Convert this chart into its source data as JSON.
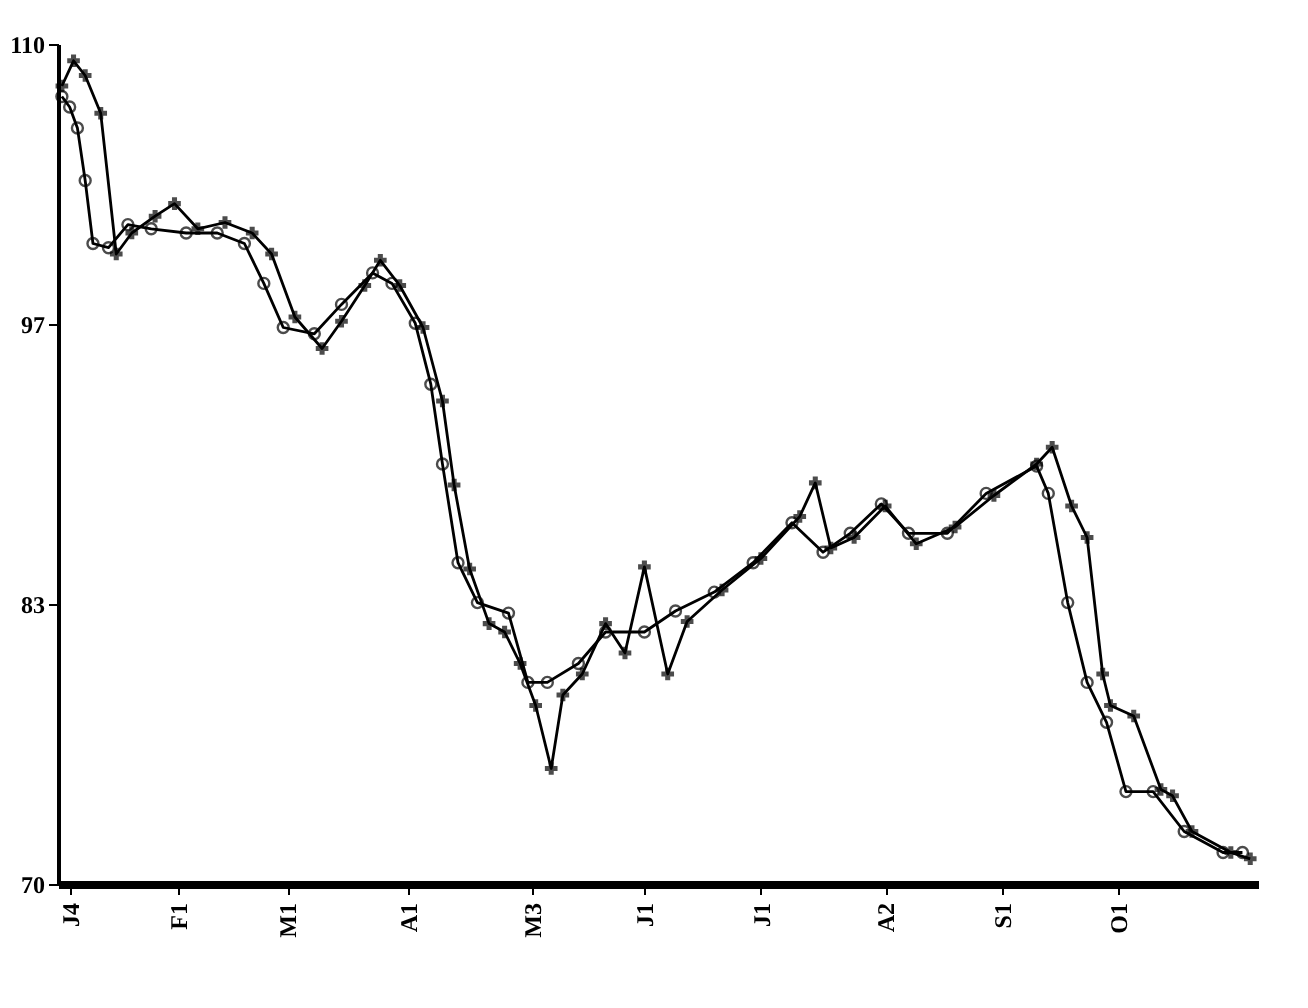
{
  "chart_data": {
    "type": "line",
    "xlim": [
      "--01-01",
      "--11-06"
    ],
    "xticks": [
      {
        "value": "--01-04",
        "label": "J4"
      },
      {
        "value": "--02-01",
        "label": "F1"
      },
      {
        "value": "--03-01",
        "label": "M1"
      },
      {
        "value": "--04-01",
        "label": "A1"
      },
      {
        "value": "--05-03",
        "label": "M3"
      },
      {
        "value": "--06-01",
        "label": "J1"
      },
      {
        "value": "--07-01",
        "label": "J1"
      },
      {
        "value": "--08-02",
        "label": "A2"
      },
      {
        "value": "--09-01",
        "label": "S1"
      },
      {
        "value": "--10-01",
        "label": "O1"
      }
    ],
    "ylim": [
      70,
      110
    ],
    "yticks": [
      70,
      {
        "value": 83.33,
        "label": "83"
      },
      {
        "value": 96.67,
        "label": "97"
      },
      110
    ],
    "grid": false,
    "line_style": "solid",
    "series": [
      {
        "color": "#000000",
        "marker": "circle",
        "x": [
          "--01-02",
          "--01-04",
          "--01-06",
          "--01-08",
          "--01-10",
          "--01-14",
          "--01-19",
          "--01-25",
          "--02-03",
          "--02-11",
          "--02-18",
          "--02-23",
          "--02-28",
          "--03-08",
          "--03-15",
          "--03-23",
          "--03-28",
          "--04-03",
          "--04-07",
          "--04-10",
          "--04-14",
          "--04-19",
          "--04-27",
          "--05-02",
          "--05-07",
          "--05-15",
          "--05-22",
          "--06-01",
          "--06-09",
          "--06-19",
          "--06-29",
          "--07-09",
          "--07-17",
          "--07-24",
          "--08-01",
          "--08-08",
          "--08-18",
          "--08-28",
          "--09-10",
          "--09-13",
          "--09-18",
          "--09-23",
          "--09-28",
          "--10-03",
          "--10-10",
          "--10-18",
          "--10-28",
          "--11-02"
        ],
        "values": [
          107.5,
          107.0,
          106.0,
          103.5,
          100.5,
          100.3,
          101.4,
          101.2,
          101.0,
          101.0,
          100.5,
          98.6,
          96.5,
          96.2,
          97.6,
          99.1,
          98.6,
          96.7,
          93.8,
          90.0,
          85.3,
          83.4,
          82.9,
          79.6,
          79.6,
          80.5,
          82.0,
          82.0,
          83.0,
          83.9,
          85.3,
          87.2,
          85.8,
          86.7,
          88.1,
          86.7,
          86.7,
          88.6,
          89.9,
          88.6,
          83.4,
          79.6,
          77.7,
          74.4,
          74.4,
          72.5,
          71.5,
          71.5
        ]
      },
      {
        "color": "#000000",
        "marker": "cross",
        "x": [
          "--01-02",
          "--01-05",
          "--01-08",
          "--01-12",
          "--01-16",
          "--01-20",
          "--01-26",
          "--01-31",
          "--02-06",
          "--02-13",
          "--02-20",
          "--02-25",
          "--03-03",
          "--03-10",
          "--03-15",
          "--03-21",
          "--03-25",
          "--03-30",
          "--04-05",
          "--04-10",
          "--04-13",
          "--04-17",
          "--04-22",
          "--04-26",
          "--04-30",
          "--05-04",
          "--05-08",
          "--05-11",
          "--05-16",
          "--05-22",
          "--05-27",
          "--06-01",
          "--06-07",
          "--06-12",
          "--06-21",
          "--07-01",
          "--07-11",
          "--07-15",
          "--07-19",
          "--07-25",
          "--08-02",
          "--08-10",
          "--08-20",
          "--08-30",
          "--09-10",
          "--09-14",
          "--09-19",
          "--09-23",
          "--09-27",
          "--09-29",
          "--10-05",
          "--10-12",
          "--10-15",
          "--10-20",
          "--10-30",
          "--11-04"
        ],
        "values": [
          108.0,
          109.2,
          108.5,
          106.7,
          100.0,
          101.0,
          101.8,
          102.4,
          101.2,
          101.5,
          101.0,
          100.0,
          97.0,
          95.5,
          96.8,
          98.5,
          99.7,
          98.5,
          96.5,
          93.0,
          89.0,
          85.0,
          82.4,
          82.0,
          80.5,
          78.5,
          75.5,
          79.0,
          80.0,
          82.4,
          81.0,
          85.1,
          80.0,
          82.5,
          84.0,
          85.5,
          87.5,
          89.1,
          86.0,
          86.5,
          88.0,
          86.2,
          87.0,
          88.5,
          90.0,
          90.8,
          88.0,
          86.5,
          80.0,
          78.5,
          78.0,
          74.5,
          74.2,
          72.5,
          71.5,
          71.2
        ]
      }
    ]
  }
}
